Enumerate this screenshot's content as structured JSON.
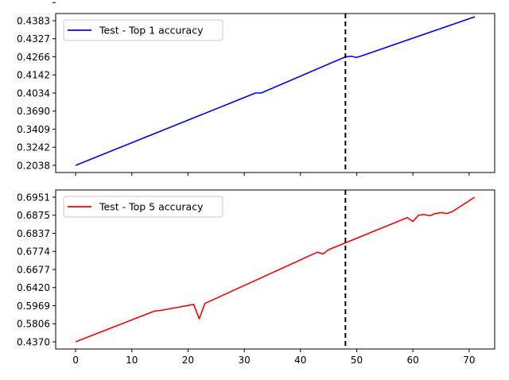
{
  "chart_data": [
    {
      "type": "line",
      "color": "#0000ff",
      "legend": {
        "entries": [
          "Test - Top 1 accuracy"
        ],
        "placement": "top-left"
      },
      "grid": false,
      "vline": {
        "x": 48,
        "style": "dashed",
        "color": "#000000"
      },
      "xlim": [
        -3.55,
        74.55
      ],
      "y_tick_labels": [
        "0.2038",
        "0.3242",
        "0.3409",
        "0.3690",
        "0.4034",
        "0.4142",
        "0.4266",
        "0.4327",
        "0.4383"
      ],
      "series": [
        {
          "name": "Test - Top 1 accuracy",
          "points": [
            {
              "x": 0,
              "y": 0.2038
            },
            {
              "x": 32,
              "y": 0.4034
            },
            {
              "x": 33,
              "y": 0.4034
            },
            {
              "x": 48,
              "y": 0.4266
            },
            {
              "x": 49,
              "y": 0.4268
            },
            {
              "x": 50,
              "y": 0.4262
            },
            {
              "x": 51,
              "y": 0.427
            },
            {
              "x": 71,
              "y": 0.4395
            }
          ]
        }
      ]
    },
    {
      "type": "line",
      "color": "#ff0000",
      "legend": {
        "entries": [
          "Test - Top 5 accuracy"
        ],
        "placement": "top-left"
      },
      "grid": false,
      "vline": {
        "x": 48,
        "style": "dashed",
        "color": "#000000"
      },
      "xlim": [
        -3.55,
        74.55
      ],
      "x_ticks": [
        0,
        10,
        20,
        30,
        40,
        50,
        60,
        70
      ],
      "y_tick_labels": [
        "0.4370",
        "0.5806",
        "0.5969",
        "0.6420",
        "0.6677",
        "0.6774",
        "0.6837",
        "0.6875",
        "0.6951"
      ],
      "series": [
        {
          "name": "Test - Top 5 accuracy",
          "points": [
            {
              "x": 0,
              "y": 0.437
            },
            {
              "x": 14,
              "y": 0.592
            },
            {
              "x": 15,
              "y": 0.5925
            },
            {
              "x": 21,
              "y": 0.6
            },
            {
              "x": 22,
              "y": 0.585
            },
            {
              "x": 23,
              "y": 0.6025
            },
            {
              "x": 43,
              "y": 0.677
            },
            {
              "x": 44,
              "y": 0.676
            },
            {
              "x": 45,
              "y": 0.678
            },
            {
              "x": 59,
              "y": 0.687
            },
            {
              "x": 60,
              "y": 0.6862
            },
            {
              "x": 61,
              "y": 0.6875
            },
            {
              "x": 62,
              "y": 0.6878
            },
            {
              "x": 63,
              "y": 0.6874
            },
            {
              "x": 64,
              "y": 0.6882
            },
            {
              "x": 65,
              "y": 0.6886
            },
            {
              "x": 66,
              "y": 0.6882
            },
            {
              "x": 67,
              "y": 0.689
            },
            {
              "x": 71,
              "y": 0.6951
            }
          ]
        }
      ]
    }
  ]
}
